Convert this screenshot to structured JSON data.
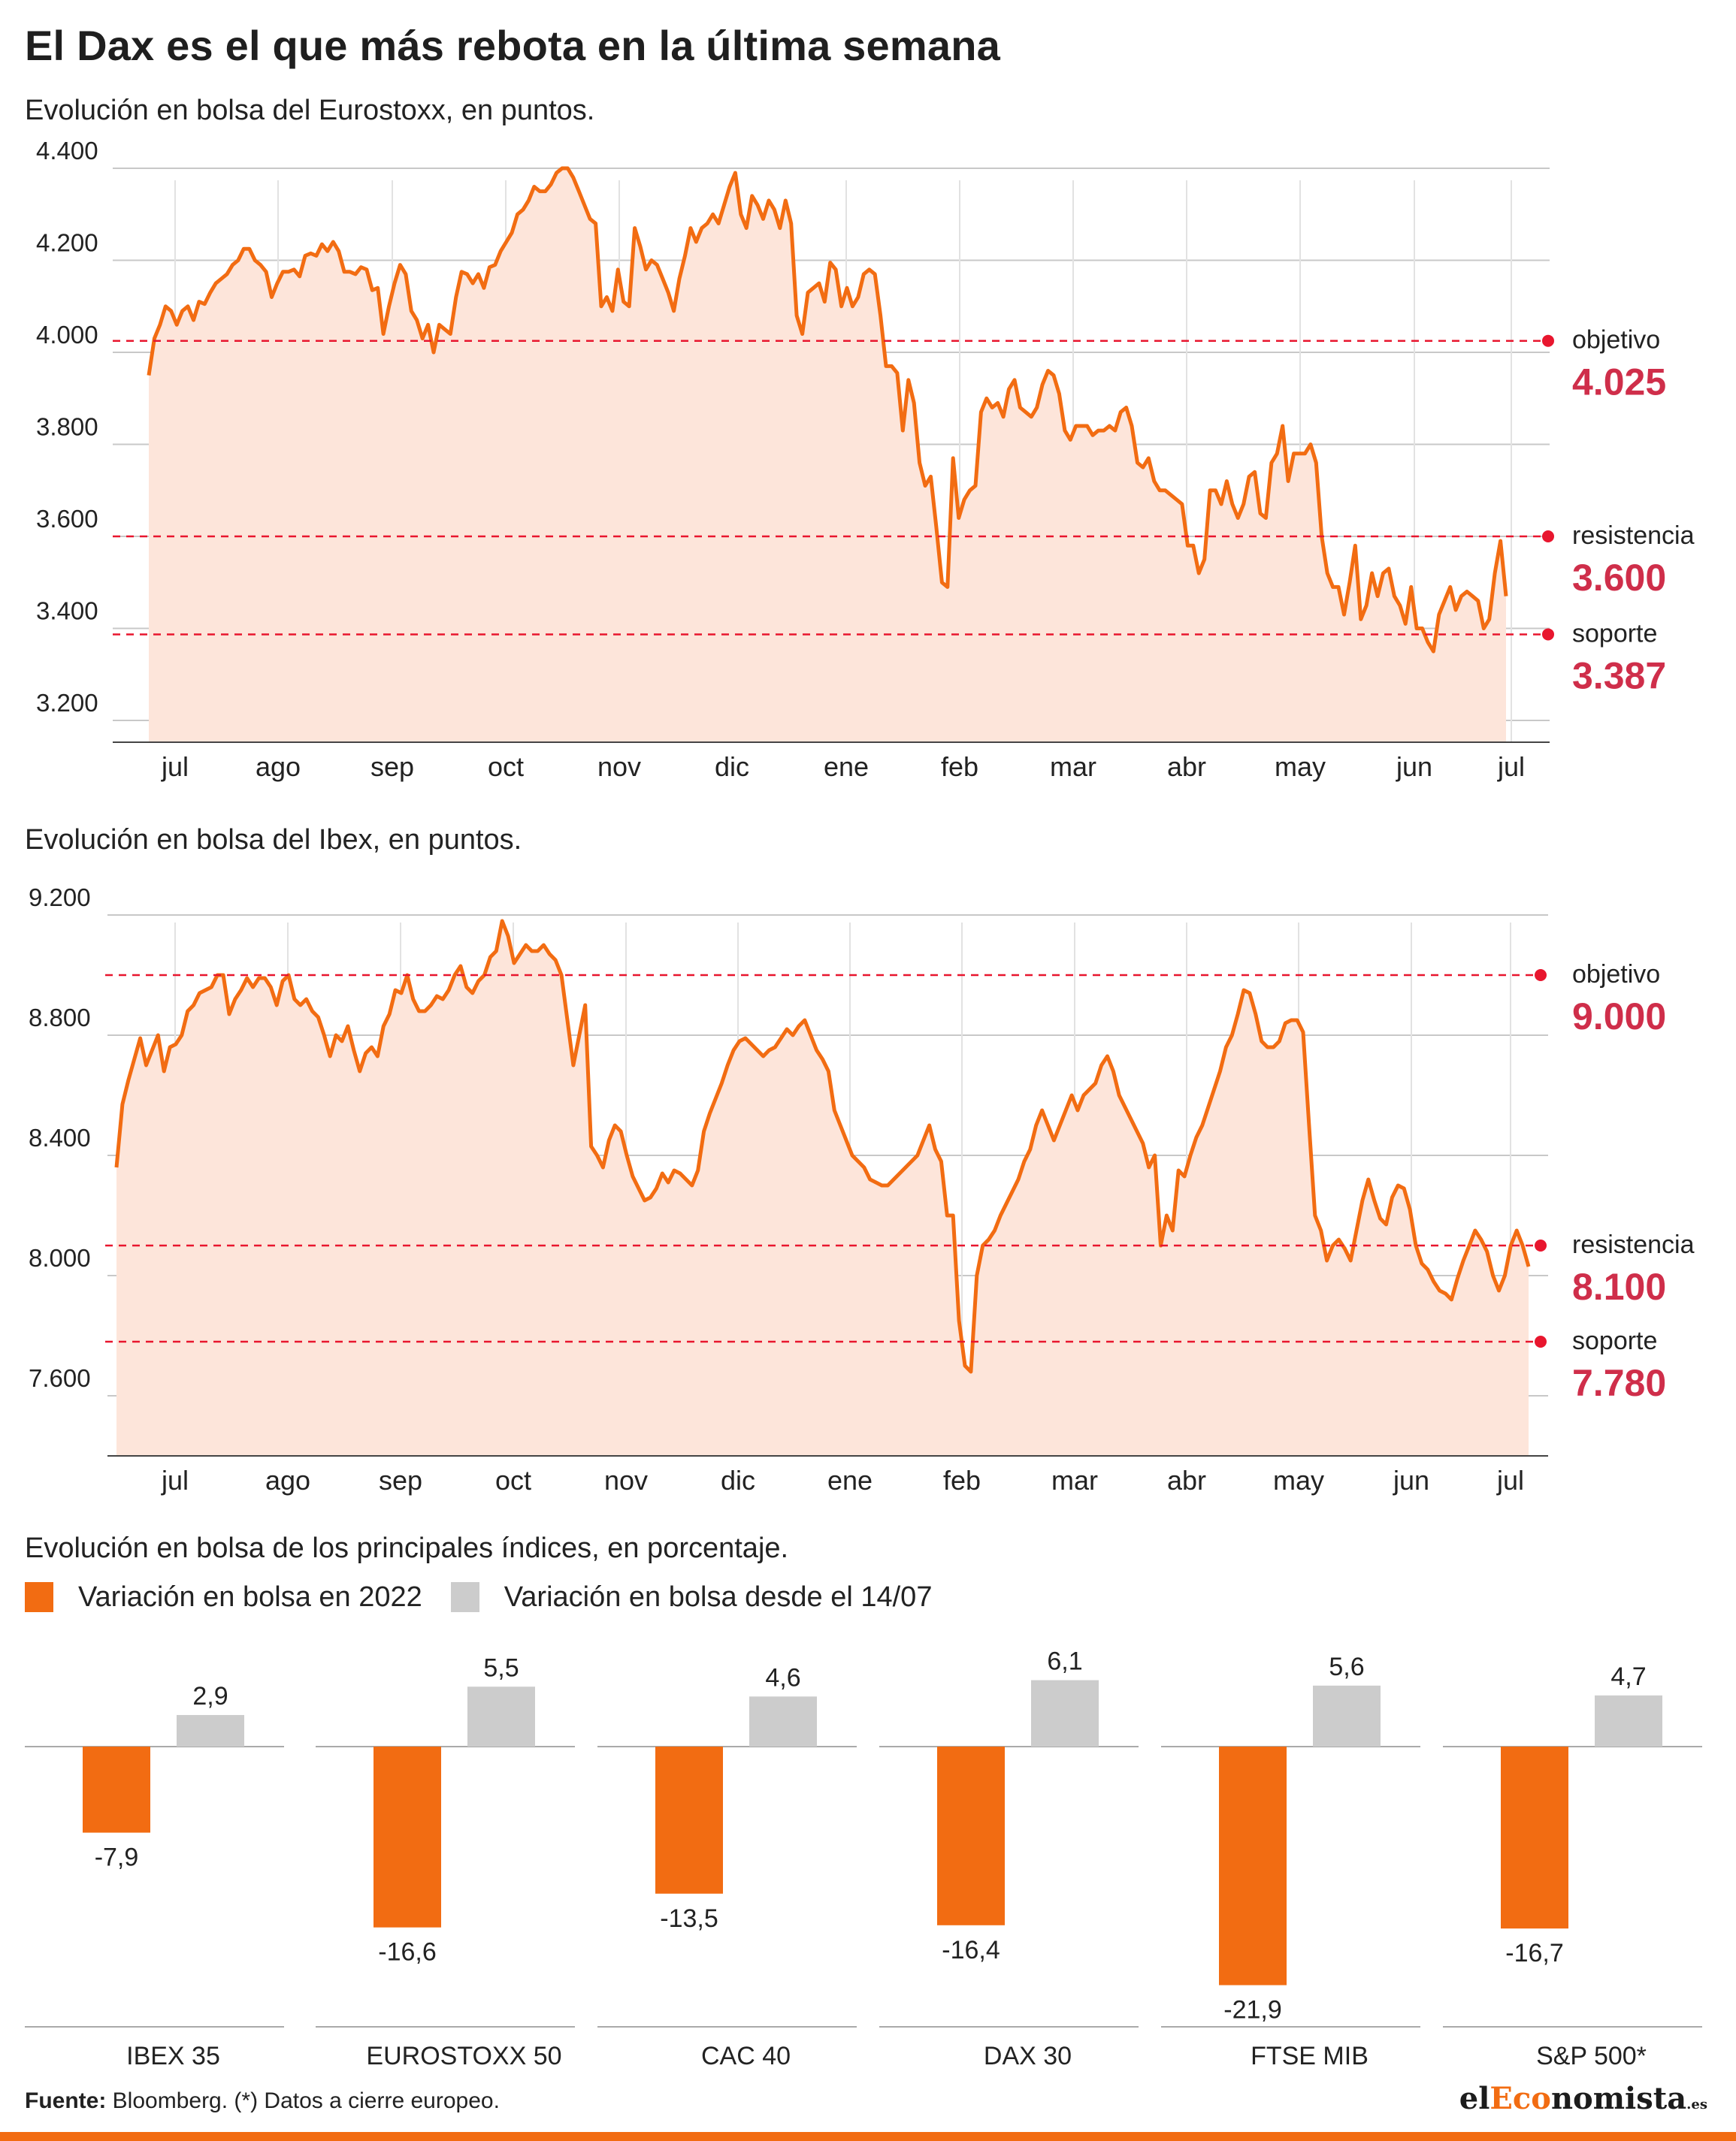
{
  "title": "El Dax es el que más rebota en la última semana",
  "colors": {
    "accent": "#f26c12",
    "line": "#f26c12",
    "fill": "#fde5da",
    "level": "#e8162e",
    "value_text": "#cf2e4a",
    "gray_bar": "#cccccc"
  },
  "chart_data": [
    {
      "type": "area",
      "title": "Evolución en bolsa del Eurostoxx, en puntos.",
      "months": [
        "jul",
        "ago",
        "sep",
        "oct",
        "nov",
        "dic",
        "ene",
        "feb",
        "mar",
        "abr",
        "may",
        "jun",
        "jul"
      ],
      "y_ticks": [
        "4.400",
        "4.200",
        "4.000",
        "3.800",
        "3.600",
        "3.400",
        "3.200"
      ],
      "ylim": [
        3200,
        4400
      ],
      "series": [
        {
          "values": [
            3950,
            4030,
            4060,
            4100,
            4090,
            4060,
            4090,
            4100,
            4070,
            4110,
            4105,
            4130,
            4150,
            4160,
            4170,
            4190,
            4200,
            4225,
            4225,
            4200,
            4190,
            4175,
            4120,
            4150,
            4175,
            4175,
            4180,
            4165,
            4210,
            4215,
            4210,
            4235,
            4220,
            4240,
            4220,
            4175,
            4175,
            4170,
            4185,
            4180,
            4135,
            4140,
            4040,
            4100,
            4150,
            4190,
            4170,
            4090,
            4070,
            4030,
            4060,
            4000,
            4060,
            4050,
            4040,
            4120,
            4175,
            4170,
            4150,
            4170,
            4140,
            4185,
            4190,
            4220,
            4240,
            4260,
            4300,
            4310,
            4330,
            4360,
            4350,
            4350,
            4365,
            4390,
            4400,
            4400,
            4380,
            4350,
            4320,
            4290,
            4280,
            4100,
            4120,
            4090,
            4180,
            4110,
            4100,
            4270,
            4230,
            4180,
            4200,
            4190,
            4160,
            4130,
            4090,
            4160,
            4210,
            4270,
            4240,
            4270,
            4280,
            4300,
            4280,
            4320,
            4360,
            4390,
            4300,
            4270,
            4340,
            4320,
            4290,
            4330,
            4310,
            4270,
            4330,
            4280,
            4080,
            4040,
            4130,
            4140,
            4150,
            4110,
            4195,
            4180,
            4100,
            4140,
            4100,
            4120,
            4170,
            4180,
            4170,
            4080,
            3970,
            3970,
            3955,
            3830,
            3940,
            3890,
            3760,
            3710,
            3730,
            3620,
            3500,
            3490,
            3770,
            3640,
            3680,
            3700,
            3710,
            3870,
            3900,
            3880,
            3890,
            3860,
            3920,
            3940,
            3880,
            3870,
            3860,
            3880,
            3930,
            3960,
            3950,
            3910,
            3830,
            3810,
            3840,
            3840,
            3840,
            3820,
            3830,
            3830,
            3840,
            3830,
            3870,
            3880,
            3840,
            3760,
            3750,
            3770,
            3720,
            3700,
            3700,
            3690,
            3680,
            3670,
            3580,
            3580,
            3520,
            3550,
            3700,
            3700,
            3670,
            3720,
            3670,
            3640,
            3670,
            3730,
            3740,
            3650,
            3640,
            3760,
            3780,
            3840,
            3720,
            3780,
            3780,
            3780,
            3800,
            3760,
            3600,
            3520,
            3490,
            3490,
            3430,
            3500,
            3580,
            3420,
            3450,
            3520,
            3470,
            3520,
            3530,
            3470,
            3450,
            3410,
            3490,
            3400,
            3400,
            3370,
            3350,
            3430,
            3460,
            3490,
            3440,
            3470,
            3480,
            3470,
            3460,
            3400,
            3420,
            3520,
            3590,
            3470
          ]
        }
      ],
      "levels": [
        {
          "label": "objetivo",
          "value": "4.025",
          "y": 4025
        },
        {
          "label": "resistencia",
          "value": "3.600",
          "y": 3600
        },
        {
          "label": "soporte",
          "value": "3.387",
          "y": 3387
        }
      ]
    },
    {
      "type": "area",
      "title": "Evolución en bolsa del Ibex, en puntos.",
      "months": [
        "jul",
        "ago",
        "sep",
        "oct",
        "nov",
        "dic",
        "ene",
        "feb",
        "mar",
        "abr",
        "may",
        "jun",
        "jul"
      ],
      "y_ticks": [
        "9.200",
        "8.800",
        "8.400",
        "8.000",
        "7.600"
      ],
      "ylim": [
        7400,
        9200
      ],
      "series": [
        {
          "values": [
            8360,
            8570,
            8650,
            8720,
            8790,
            8700,
            8750,
            8800,
            8680,
            8760,
            8770,
            8800,
            8880,
            8900,
            8940,
            8950,
            8960,
            9000,
            9000,
            8870,
            8920,
            8950,
            8990,
            8960,
            8990,
            8990,
            8960,
            8900,
            8980,
            9000,
            8920,
            8900,
            8920,
            8880,
            8860,
            8800,
            8730,
            8800,
            8780,
            8830,
            8750,
            8680,
            8740,
            8760,
            8730,
            8830,
            8870,
            8950,
            8940,
            9000,
            8920,
            8880,
            8880,
            8900,
            8930,
            8920,
            8950,
            9000,
            9030,
            8960,
            8940,
            8980,
            9000,
            9060,
            9080,
            9180,
            9130,
            9040,
            9070,
            9100,
            9080,
            9080,
            9100,
            9070,
            9050,
            9000,
            8850,
            8700,
            8800,
            8900,
            8430,
            8400,
            8360,
            8450,
            8500,
            8480,
            8400,
            8330,
            8290,
            8250,
            8260,
            8290,
            8340,
            8310,
            8350,
            8340,
            8320,
            8300,
            8350,
            8480,
            8540,
            8590,
            8640,
            8700,
            8750,
            8780,
            8790,
            8770,
            8750,
            8730,
            8750,
            8760,
            8790,
            8820,
            8800,
            8830,
            8850,
            8800,
            8750,
            8720,
            8680,
            8550,
            8500,
            8450,
            8400,
            8380,
            8360,
            8320,
            8310,
            8300,
            8300,
            8320,
            8340,
            8360,
            8380,
            8400,
            8450,
            8500,
            8420,
            8380,
            8200,
            8200,
            7850,
            7700,
            7680,
            8000,
            8100,
            8120,
            8150,
            8200,
            8240,
            8280,
            8320,
            8380,
            8420,
            8500,
            8550,
            8500,
            8450,
            8500,
            8550,
            8600,
            8550,
            8600,
            8620,
            8640,
            8700,
            8730,
            8680,
            8600,
            8560,
            8520,
            8480,
            8440,
            8360,
            8400,
            8100,
            8200,
            8150,
            8350,
            8330,
            8400,
            8460,
            8500,
            8560,
            8620,
            8680,
            8760,
            8800,
            8870,
            8950,
            8940,
            8870,
            8780,
            8760,
            8760,
            8780,
            8840,
            8850,
            8850,
            8810,
            8500,
            8200,
            8150,
            8050,
            8100,
            8120,
            8090,
            8050,
            8150,
            8250,
            8320,
            8250,
            8190,
            8170,
            8260,
            8300,
            8290,
            8220,
            8100,
            8040,
            8020,
            7980,
            7950,
            7940,
            7920,
            7990,
            8050,
            8100,
            8150,
            8120,
            8080,
            8000,
            7950,
            8000,
            8100,
            8150,
            8100,
            8030
          ]
        }
      ],
      "levels": [
        {
          "label": "objetivo",
          "value": "9.000",
          "y": 9000
        },
        {
          "label": "resistencia",
          "value": "8.100",
          "y": 8100
        },
        {
          "label": "soporte",
          "value": "7.780",
          "y": 7780
        }
      ]
    },
    {
      "type": "bar",
      "title": "Evolución en bolsa de los principales índices, en porcentaje.",
      "categories": [
        "IBEX 35",
        "EUROSTOXX 50",
        "CAC 40",
        "DAX 30",
        "FTSE MIB",
        "S&P 500*"
      ],
      "series": [
        {
          "name": "Variación en bolsa en 2022",
          "values": [
            -7.9,
            -16.6,
            -13.5,
            -16.4,
            -21.9,
            -16.7
          ],
          "labels": [
            "-7,9",
            "-16,6",
            "-13,5",
            "-16,4",
            "-21,9",
            "-16,7"
          ]
        },
        {
          "name": "Variación en bolsa desde el 14/07",
          "values": [
            2.9,
            5.5,
            4.6,
            6.1,
            5.6,
            4.7
          ],
          "labels": [
            "2,9",
            "5,5",
            "4,6",
            "6,1",
            "5,6",
            "4,7"
          ]
        }
      ]
    }
  ],
  "footer": {
    "source_label": "Fuente:",
    "source_text": " Bloomberg. (*) Datos a cierre europeo."
  },
  "logo": {
    "part1": "el",
    "part2": "Eco",
    "part3": "nomista",
    "suffix": ".es"
  }
}
